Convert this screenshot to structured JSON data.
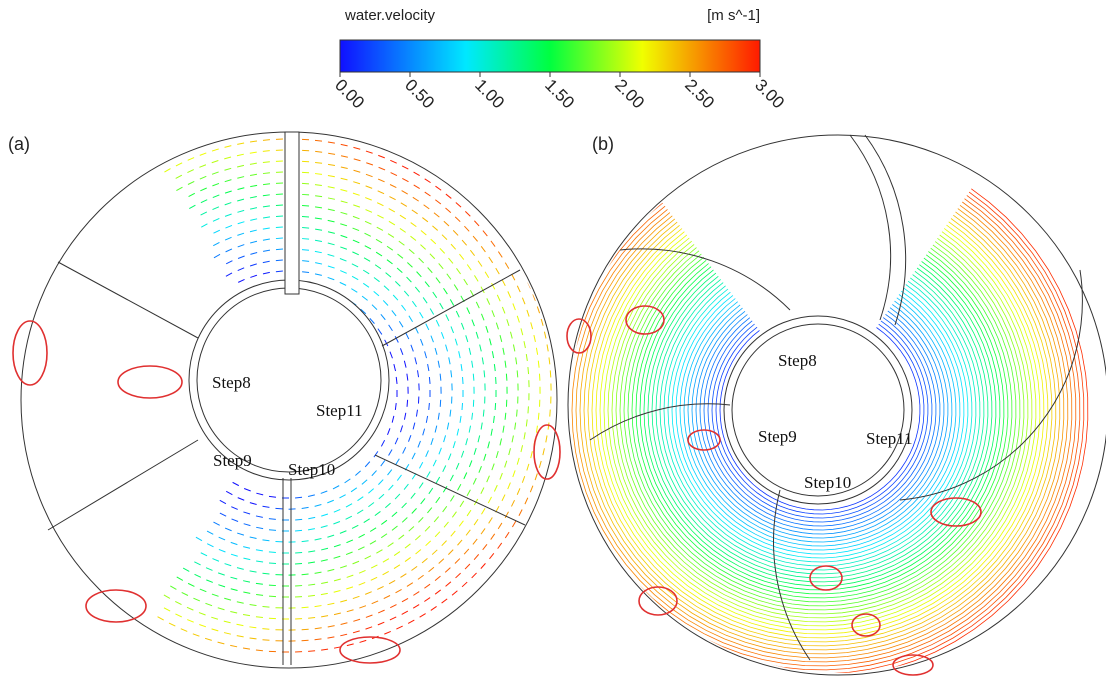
{
  "colorbar": {
    "title": "water.velocity",
    "unit": "[m s^-1]",
    "min": 0,
    "max": 3,
    "ticks": [
      {
        "value": 0,
        "label": "0.00"
      },
      {
        "value": 0.5,
        "label": "0.50"
      },
      {
        "value": 1,
        "label": "1.00"
      },
      {
        "value": 1.5,
        "label": "1.50"
      },
      {
        "value": 2,
        "label": "2.00"
      },
      {
        "value": 2.5,
        "label": "2.50"
      },
      {
        "value": 3,
        "label": "3.00"
      }
    ]
  },
  "panels": [
    {
      "label": "(a)",
      "steps": [
        "Step8",
        "Step9",
        "Step10",
        "Step11"
      ]
    },
    {
      "label": "(b)",
      "steps": [
        "Step8",
        "Step9",
        "Step10",
        "Step11"
      ]
    }
  ]
}
